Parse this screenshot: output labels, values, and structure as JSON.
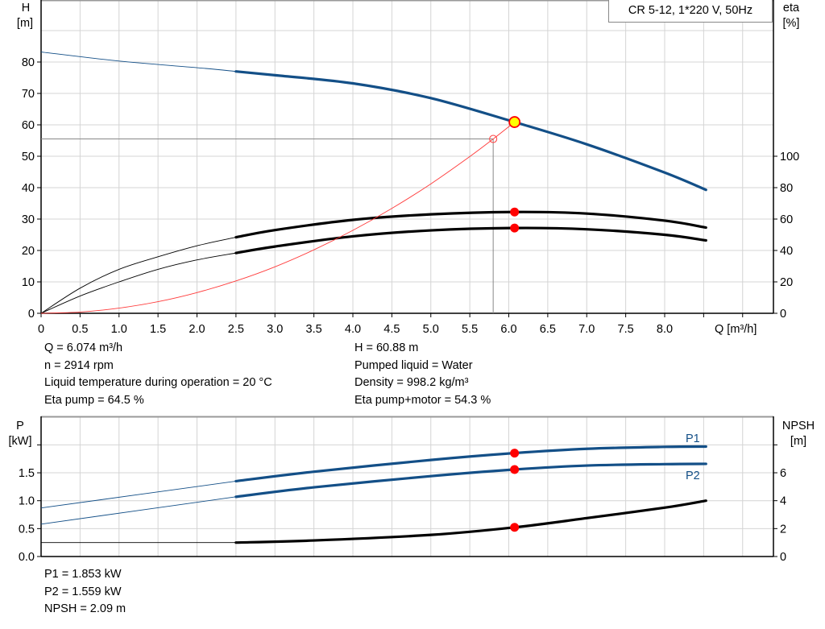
{
  "title": "CR 5-12, 1*220 V, 50Hz",
  "colors": {
    "head": "#134f87",
    "power": "#134f87",
    "efficiency": "#000000",
    "npsh": "#000000",
    "system": "#ff3b3b",
    "duty_point": "#ff0000",
    "duty_point_head": "#ffff00",
    "grid": "#d4d4d4"
  },
  "chart_data": [
    {
      "type": "line",
      "name": "performance",
      "xlabel": "Q [m³/h]",
      "ylabel_left": [
        "H",
        "[m]"
      ],
      "ylabel_right": [
        "eta",
        "[%]"
      ],
      "xlim": [
        0,
        9.4
      ],
      "ylim_left": [
        0,
        100
      ],
      "ylim_right": [
        0,
        200
      ],
      "grid": true,
      "x_ticks": [
        "0",
        "0.5",
        "1.0",
        "1.5",
        "2.0",
        "2.5",
        "3.0",
        "3.5",
        "4.0",
        "4.5",
        "5.0",
        "5.5",
        "6.0",
        "6.5",
        "7.0",
        "7.5",
        "8.0"
      ],
      "y_ticks_left": [
        "0",
        "10",
        "20",
        "30",
        "40",
        "50",
        "60",
        "70",
        "80"
      ],
      "y_ticks_right": [
        "0",
        "20",
        "40",
        "60",
        "80",
        "100"
      ],
      "series": [
        {
          "id": "H",
          "axis": "left",
          "color": "#134f87",
          "thin_until": 2.5,
          "x": [
            0,
            1,
            2,
            2.5,
            3,
            4,
            5,
            6.074,
            7,
            8,
            8.53
          ],
          "y": [
            83.2,
            80.3,
            78.2,
            77,
            75.8,
            73.2,
            68.5,
            60.88,
            53.8,
            44.8,
            39.3
          ]
        },
        {
          "id": "eta_pump",
          "axis": "right",
          "color": "#000000",
          "thin_until": 2.5,
          "x": [
            0,
            0.5,
            1,
            1.5,
            2,
            2.5,
            3,
            4,
            5,
            6.074,
            7,
            8,
            8.53
          ],
          "y": [
            0,
            16,
            28,
            36,
            43,
            48.4,
            53,
            59.5,
            63,
            64.5,
            63.5,
            59,
            54.6
          ]
        },
        {
          "id": "eta_pump_motor",
          "axis": "right",
          "color": "#000000",
          "thin_until": 2.5,
          "x": [
            0,
            0.5,
            1,
            1.5,
            2,
            2.5,
            3,
            4,
            5,
            6.074,
            7,
            8,
            8.53
          ],
          "y": [
            0,
            11,
            20,
            28,
            34,
            38.4,
            42.5,
            49,
            52.8,
            54.3,
            53.5,
            50,
            46.4
          ]
        },
        {
          "id": "system_curve",
          "axis": "left",
          "color": "#ff3b3b",
          "x": [
            0,
            0.5,
            1,
            1.5,
            2,
            2.5,
            3,
            3.5,
            4,
            4.5,
            5,
            5.5,
            5.8,
            6.074
          ],
          "y": [
            0,
            0.4,
            1.65,
            3.7,
            6.6,
            10.3,
            14.8,
            20.2,
            26.4,
            33.4,
            41.2,
            49.9,
            55.5,
            60.88
          ]
        }
      ],
      "duty_point": {
        "Q": 6.074,
        "H": 60.88,
        "eta_pump": 64.5,
        "eta_pump_motor": 54.3
      },
      "required_point": {
        "Q": 5.8,
        "H": 55.5
      }
    },
    {
      "type": "line",
      "name": "power_npsh",
      "ylabel_left": [
        "P",
        "[kW]"
      ],
      "ylabel_right": [
        "NPSH",
        "[m]"
      ],
      "xlim": [
        0,
        9.4
      ],
      "ylim_left": [
        0,
        2.5
      ],
      "ylim_right": [
        0,
        10
      ],
      "grid": true,
      "y_ticks_left": [
        "0.0",
        "0.5",
        "1.0",
        "1.5"
      ],
      "y_ticks_right": [
        "0",
        "2",
        "4",
        "6"
      ],
      "series": [
        {
          "id": "P1",
          "name": "P1",
          "axis": "left",
          "color": "#134f87",
          "thin_until": 2.5,
          "x": [
            0,
            2.5,
            3.5,
            5,
            6.074,
            7,
            8,
            8.53
          ],
          "y": [
            0.87,
            1.35,
            1.52,
            1.73,
            1.853,
            1.93,
            1.965,
            1.97
          ]
        },
        {
          "id": "P2",
          "name": "P2",
          "axis": "left",
          "color": "#134f87",
          "thin_until": 2.5,
          "x": [
            0,
            2.5,
            3.5,
            5,
            6.074,
            7,
            8,
            8.53
          ],
          "y": [
            0.58,
            1.07,
            1.24,
            1.44,
            1.559,
            1.63,
            1.655,
            1.66
          ]
        },
        {
          "id": "NPSH",
          "axis": "right",
          "color": "#000000",
          "thin_until": 2.5,
          "x": [
            0,
            2.5,
            3.5,
            5,
            6.074,
            7,
            8,
            8.53
          ],
          "y": [
            1.0,
            1.0,
            1.15,
            1.55,
            2.09,
            2.75,
            3.5,
            4.0
          ]
        }
      ],
      "duty_point": {
        "Q": 6.074,
        "P1": 1.853,
        "P2": 1.559,
        "NPSH": 2.09
      }
    }
  ],
  "readout_top": {
    "left": [
      "Q = 6.074 m³/h",
      "n = 2914 rpm",
      "Liquid temperature during operation = 20 °C",
      "Eta pump = 64.5 %"
    ],
    "right": [
      "H = 60.88 m",
      "Pumped liquid = Water",
      "Density = 998.2 kg/m³",
      "Eta pump+motor = 54.3 %"
    ]
  },
  "readout_bottom": [
    "P1 = 1.853 kW",
    "P2 = 1.559 kW",
    "NPSH = 2.09 m"
  ]
}
